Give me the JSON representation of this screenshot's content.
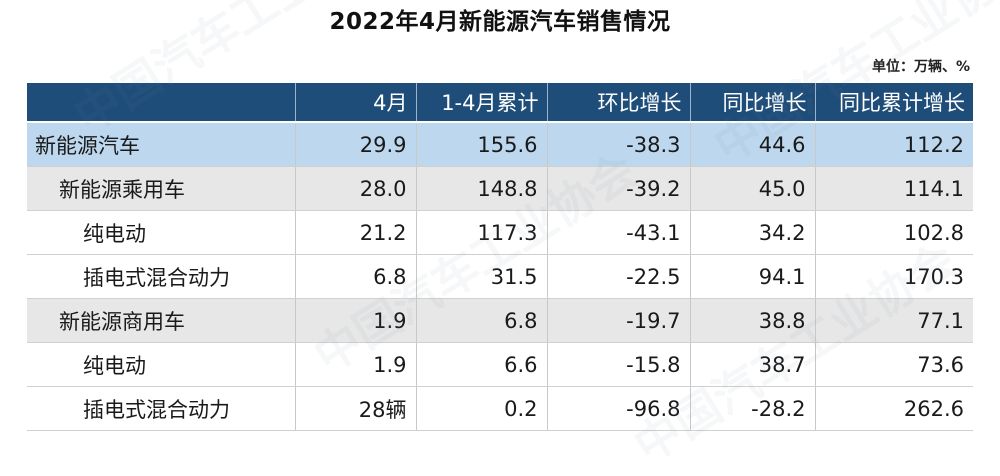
{
  "title": "2022年4月新能源汽车销售情况",
  "unit": "单位：万辆、%",
  "watermark": "中国汽车工业协会",
  "table": {
    "headers": [
      "",
      "4月",
      "1-4月累计",
      "环比增长",
      "同比增长",
      "同比累计增长"
    ],
    "rows": [
      {
        "level": 0,
        "cells": [
          "新能源汽车",
          "29.9",
          "155.6",
          "-38.3",
          "44.6",
          "112.2"
        ]
      },
      {
        "level": 1,
        "cells": [
          "新能源乘用车",
          "28.0",
          "148.8",
          "-39.2",
          "45.0",
          "114.1"
        ]
      },
      {
        "level": 2,
        "cells": [
          "纯电动",
          "21.2",
          "117.3",
          "-43.1",
          "34.2",
          "102.8"
        ]
      },
      {
        "level": 2,
        "cells": [
          "插电式混合动力",
          "6.8",
          "31.5",
          "-22.5",
          "94.1",
          "170.3"
        ]
      },
      {
        "level": 1,
        "cells": [
          "新能源商用车",
          "1.9",
          "6.8",
          "-19.7",
          "38.8",
          "77.1"
        ]
      },
      {
        "level": 2,
        "cells": [
          "纯电动",
          "1.9",
          "6.6",
          "-15.8",
          "38.7",
          "73.6"
        ]
      },
      {
        "level": 2,
        "cells": [
          "插电式混合动力",
          "28辆",
          "0.2",
          "-96.8",
          "-28.2",
          "262.6"
        ]
      }
    ]
  }
}
